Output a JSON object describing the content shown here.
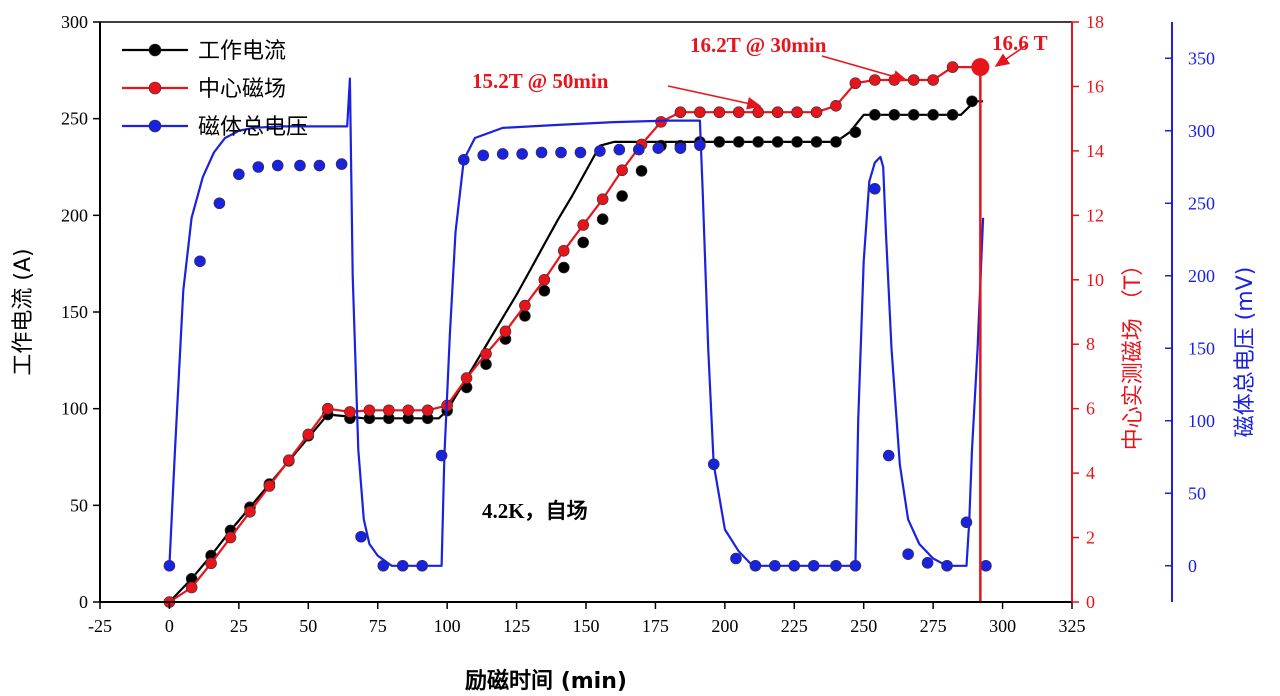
{
  "chart_data": {
    "type": "line",
    "xlabel": "励磁时间 (min)",
    "xlim": [
      -25,
      325
    ],
    "xticks": [
      "-25",
      "0",
      "25",
      "50",
      "75",
      "100",
      "125",
      "150",
      "175",
      "200",
      "225",
      "250",
      "275",
      "300",
      "325"
    ],
    "axes": {
      "left": {
        "label": "工作电流 (A)",
        "ylim": [
          0,
          300
        ],
        "ticks": [
          "0",
          "50",
          "100",
          "150",
          "200",
          "250",
          "300"
        ],
        "color": "#000000"
      },
      "right1": {
        "label": "中心实测磁场 （T）",
        "ylim": [
          0,
          18
        ],
        "ticks": [
          "0",
          "2",
          "4",
          "6",
          "8",
          "10",
          "12",
          "14",
          "16",
          "18"
        ],
        "color": "#e8141b"
      },
      "right2": {
        "label": "磁体总电压 (mV)",
        "ylim": [
          -25,
          375
        ],
        "ticks": [
          "0",
          "50",
          "100",
          "150",
          "200",
          "250",
          "300",
          "350"
        ],
        "color": "#1a22e0"
      }
    },
    "legend": {
      "position": "top-left",
      "entries": [
        {
          "label": "工作电流",
          "color": "#000000"
        },
        {
          "label": "中心磁场",
          "color": "#e8141b"
        },
        {
          "label": "磁体总电压",
          "color": "#1a22e0"
        }
      ]
    },
    "series": [
      {
        "name": "工作电流",
        "axis": "left",
        "color": "#000000",
        "x": [
          0,
          8,
          15,
          22,
          29,
          36,
          43,
          50,
          57,
          64,
          70,
          75,
          80,
          85,
          91,
          97,
          100,
          105,
          110,
          115,
          120,
          125,
          130,
          135,
          140,
          145,
          150,
          155,
          160,
          165,
          170,
          175,
          180,
          185,
          190,
          195,
          200,
          205,
          210,
          215,
          220,
          225,
          230,
          235,
          240,
          245,
          250,
          255,
          260,
          265,
          270,
          275,
          280,
          285,
          290,
          293
        ],
        "y": [
          0,
          12,
          24,
          37,
          49,
          61,
          73,
          85,
          97,
          96,
          95,
          95,
          95,
          95,
          95,
          95,
          99,
          111,
          123,
          135,
          147,
          159,
          172,
          185,
          198,
          210,
          223,
          236,
          238,
          238,
          238,
          238,
          238,
          238,
          238,
          238,
          238,
          238,
          238,
          238,
          238,
          238,
          238,
          238,
          238,
          243,
          252,
          252,
          252,
          252,
          252,
          252,
          252,
          252,
          259,
          259
        ],
        "markers_x": [
          8,
          15,
          22,
          29,
          36,
          43,
          50,
          57,
          65,
          72,
          79,
          86,
          93,
          100,
          107,
          114,
          121,
          128,
          135,
          142,
          149,
          156,
          163,
          170,
          177,
          184,
          191,
          198,
          205,
          212,
          219,
          226,
          233,
          240,
          247,
          254,
          261,
          268,
          275,
          282,
          289
        ],
        "markers_y": [
          12,
          24,
          37,
          49,
          61,
          73,
          86,
          97,
          95,
          95,
          95,
          95,
          95,
          99,
          111,
          123,
          136,
          148,
          161,
          173,
          186,
          198,
          210,
          223,
          236,
          236,
          238,
          238,
          238,
          238,
          238,
          238,
          238,
          238,
          243,
          252,
          252,
          252,
          252,
          252,
          259
        ]
      },
      {
        "name": "中心磁场",
        "axis": "right1",
        "color": "#e8141b",
        "x": [
          0,
          8,
          15,
          22,
          29,
          36,
          43,
          50,
          57,
          65,
          72,
          79,
          86,
          93,
          100,
          107,
          114,
          121,
          128,
          135,
          142,
          149,
          156,
          163,
          170,
          177,
          184,
          191,
          198,
          205,
          212,
          219,
          226,
          233,
          240,
          247,
          254,
          261,
          268,
          275,
          282,
          289,
          293
        ],
        "y": [
          0,
          0.45,
          1.2,
          2.0,
          2.8,
          3.6,
          4.4,
          5.2,
          6.0,
          5.9,
          5.95,
          5.95,
          5.95,
          5.95,
          6.1,
          6.95,
          7.7,
          8.4,
          9.2,
          10.0,
          10.9,
          11.7,
          12.5,
          13.4,
          14.2,
          14.9,
          15.2,
          15.2,
          15.2,
          15.2,
          15.2,
          15.2,
          15.2,
          15.2,
          15.4,
          16.1,
          16.2,
          16.2,
          16.2,
          16.2,
          16.6,
          16.6,
          16.6
        ],
        "markers_x": [
          0,
          8,
          15,
          22,
          29,
          36,
          43,
          50,
          57,
          65,
          72,
          79,
          86,
          93,
          100,
          107,
          114,
          121,
          128,
          135,
          142,
          149,
          156,
          163,
          170,
          177,
          184,
          191,
          198,
          205,
          212,
          219,
          226,
          233,
          240,
          247,
          254,
          261,
          268,
          275,
          282
        ],
        "markers_y": [
          0,
          0.45,
          1.2,
          2.0,
          2.8,
          3.6,
          4.4,
          5.2,
          6.0,
          5.9,
          5.95,
          5.95,
          5.95,
          5.95,
          6.1,
          6.95,
          7.7,
          8.4,
          9.2,
          10.0,
          10.9,
          11.7,
          12.5,
          13.4,
          14.2,
          14.9,
          15.2,
          15.2,
          15.2,
          15.2,
          15.2,
          15.2,
          15.2,
          15.2,
          15.4,
          16.1,
          16.2,
          16.2,
          16.2,
          16.2,
          16.6
        ]
      },
      {
        "name": "磁体总电压",
        "axis": "right2",
        "color": "#1a22e0",
        "x": [
          0,
          2,
          5,
          8,
          12,
          16,
          20,
          25,
          30,
          40,
          50,
          60,
          64,
          65,
          66,
          68,
          70,
          72,
          75,
          80,
          90,
          97,
          98,
          99,
          101,
          103,
          106,
          110,
          120,
          140,
          160,
          180,
          190,
          191,
          192,
          194,
          196,
          200,
          205,
          210,
          220,
          240,
          246,
          247,
          248,
          250,
          252,
          254,
          255,
          256,
          257,
          258,
          260,
          263,
          266,
          270,
          275,
          280,
          285,
          287,
          288,
          289,
          291,
          293
        ],
        "y": [
          0,
          80,
          190,
          240,
          268,
          285,
          295,
          300,
          302,
          303,
          303,
          303,
          303,
          336,
          200,
          80,
          32,
          15,
          7,
          0,
          0,
          0,
          0,
          76,
          160,
          230,
          280,
          295,
          302,
          304,
          306,
          307,
          307,
          307,
          260,
          150,
          70,
          25,
          10,
          0,
          0,
          0,
          0,
          0,
          100,
          210,
          265,
          278,
          280,
          282,
          275,
          230,
          150,
          70,
          32,
          15,
          5,
          0,
          0,
          0,
          30,
          80,
          150,
          240
        ],
        "markers_x": [
          0,
          11,
          18,
          25,
          32,
          39,
          47,
          54,
          62,
          69,
          77,
          84,
          91,
          98,
          106,
          113,
          120,
          127,
          134,
          141,
          148,
          155,
          162,
          169,
          176,
          184,
          191,
          196,
          204,
          211,
          218,
          225,
          232,
          240,
          247,
          254,
          259,
          266,
          273,
          280,
          287,
          294
        ],
        "markers_y": [
          0,
          210,
          250,
          270,
          275,
          276,
          276,
          276,
          277,
          20,
          0,
          0,
          0,
          76,
          280,
          283,
          284,
          284,
          285,
          285,
          285,
          286,
          287,
          287,
          288,
          288,
          290,
          70,
          5,
          0,
          0,
          0,
          0,
          0,
          0,
          260,
          76,
          8,
          2,
          0,
          30,
          0
        ]
      }
    ],
    "annotations": [
      {
        "text": "16.2T @ 30min",
        "style": "red"
      },
      {
        "text": "15.2T @ 50min",
        "style": "red"
      },
      {
        "text": "16.6 T",
        "style": "red"
      },
      {
        "text": "4.2K，自场",
        "style": "black"
      }
    ]
  }
}
